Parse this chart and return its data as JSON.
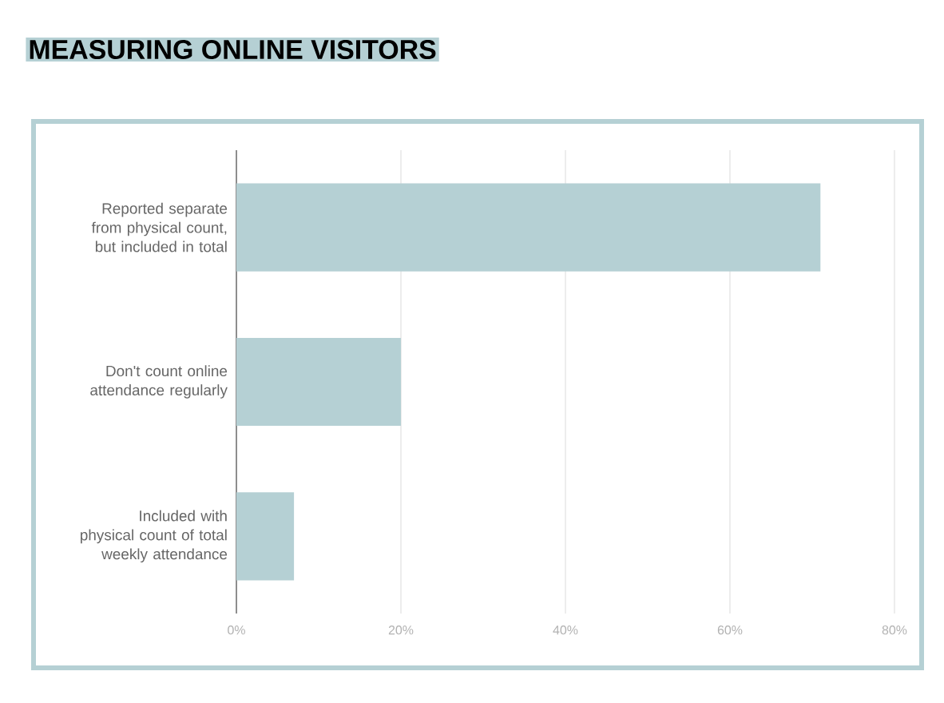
{
  "chart_data": {
    "type": "bar",
    "orientation": "horizontal",
    "title": "MEASURING ONLINE VISITORS",
    "categories": [
      "Reported separate from physical count, but included in total",
      "Don't count online attendance regularly",
      "Included with physical count of total weekly attendance"
    ],
    "values": [
      71,
      20,
      7
    ],
    "color": "#b5d0d4",
    "xlim": [
      0,
      80
    ],
    "xticks": [
      {
        "value": 0,
        "label": "0%"
      },
      {
        "value": 20,
        "label": "20%"
      },
      {
        "value": 40,
        "label": "40%"
      },
      {
        "value": 60,
        "label": "60%"
      },
      {
        "value": 80,
        "label": "80%"
      }
    ],
    "grid": "x"
  }
}
